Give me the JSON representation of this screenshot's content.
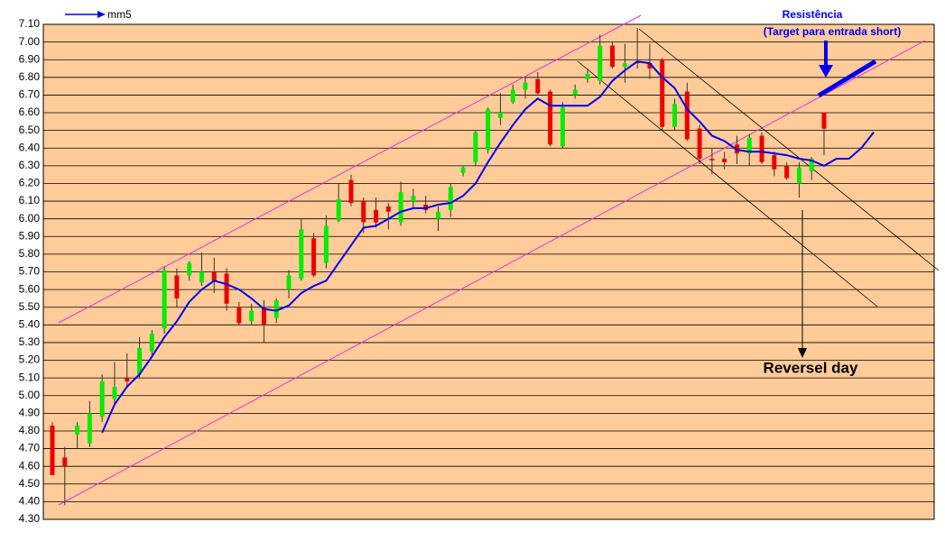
{
  "chart_data": {
    "type": "candlestick",
    "ylim": [
      4.3,
      7.1
    ],
    "yticks": [
      {
        "value": 4.3,
        "label": "4.30"
      },
      {
        "value": 4.4,
        "label": "4.40"
      },
      {
        "value": 4.5,
        "label": "4.50"
      },
      {
        "value": 4.6,
        "label": "4.60"
      },
      {
        "value": 4.7,
        "label": "4.70"
      },
      {
        "value": 4.8,
        "label": "4.80"
      },
      {
        "value": 4.9,
        "label": "4.90"
      },
      {
        "value": 5.0,
        "label": "5.00"
      },
      {
        "value": 5.1,
        "label": "5.10"
      },
      {
        "value": 5.2,
        "label": "5.20"
      },
      {
        "value": 5.3,
        "label": "5.30"
      },
      {
        "value": 5.4,
        "label": "5.40"
      },
      {
        "value": 5.5,
        "label": "5.50"
      },
      {
        "value": 5.6,
        "label": "5.60"
      },
      {
        "value": 5.7,
        "label": "5.70"
      },
      {
        "value": 5.8,
        "label": "5.80"
      },
      {
        "value": 5.9,
        "label": "5.90"
      },
      {
        "value": 6.0,
        "label": "6.00"
      },
      {
        "value": 6.1,
        "label": "6.10"
      },
      {
        "value": 6.2,
        "label": "6.20"
      },
      {
        "value": 6.3,
        "label": "6.30"
      },
      {
        "value": 6.4,
        "label": "6.40"
      },
      {
        "value": 6.5,
        "label": "6.50"
      },
      {
        "value": 6.6,
        "label": "6.60"
      },
      {
        "value": 6.7,
        "label": "6.70"
      },
      {
        "value": 6.8,
        "label": "6.80"
      },
      {
        "value": 6.9,
        "label": "6.90"
      },
      {
        "value": 7.0,
        "label": "7.00"
      },
      {
        "value": 7.1,
        "label": "7.10"
      }
    ],
    "grid": true,
    "background": "#ffcc99",
    "candles": {
      "up_color": "#00ee00",
      "down_color": "#ee0000",
      "open": [
        4.83,
        4.65,
        4.78,
        4.73,
        4.88,
        4.98,
        5.1,
        5.12,
        5.25,
        5.38,
        5.68,
        5.68,
        5.64,
        5.7,
        5.69,
        5.5,
        5.42,
        5.5,
        5.44,
        5.6,
        5.66,
        5.89,
        5.75,
        5.99,
        6.22,
        6.1,
        6.05,
        6.07,
        5.98,
        6.1,
        6.08,
        6.0,
        6.05,
        6.26,
        6.32,
        6.39,
        6.57,
        6.66,
        6.73,
        6.79,
        6.72,
        6.41,
        6.7,
        6.79,
        6.78,
        6.98,
        6.86,
        6.89,
        6.88,
        6.9,
        6.52,
        6.72,
        6.51,
        6.34,
        6.34,
        6.42,
        6.37,
        6.47,
        6.36,
        6.3,
        6.2,
        6.27,
        6.6,
        null,
        null,
        null,
        null
      ],
      "high": [
        4.85,
        4.71,
        4.85,
        4.97,
        5.12,
        5.19,
        5.24,
        5.33,
        5.37,
        5.73,
        5.72,
        5.76,
        5.81,
        5.78,
        5.72,
        5.53,
        5.52,
        5.54,
        5.55,
        5.71,
        6.0,
        5.92,
        6.02,
        6.2,
        6.25,
        6.12,
        6.12,
        6.09,
        6.21,
        6.17,
        6.13,
        6.07,
        6.2,
        6.3,
        6.5,
        6.63,
        6.71,
        6.76,
        6.8,
        6.83,
        6.73,
        6.66,
        6.76,
        6.85,
        7.04,
        7.0,
        6.99,
        7.08,
        6.99,
        6.91,
        6.68,
        6.77,
        6.53,
        6.4,
        6.38,
        6.47,
        6.48,
        6.49,
        6.38,
        6.32,
        6.32,
        6.35,
        6.6,
        null,
        null,
        null,
        null
      ],
      "low": [
        4.55,
        4.38,
        4.7,
        4.71,
        4.85,
        4.95,
        5.05,
        5.1,
        5.22,
        5.35,
        5.5,
        5.65,
        5.62,
        5.58,
        5.48,
        5.4,
        5.4,
        5.3,
        5.41,
        5.55,
        5.65,
        5.67,
        5.72,
        5.98,
        6.07,
        5.92,
        5.95,
        5.94,
        5.96,
        6.06,
        6.03,
        5.93,
        6.01,
        6.24,
        6.3,
        6.37,
        6.53,
        6.65,
        6.68,
        6.7,
        6.41,
        6.4,
        6.68,
        6.77,
        6.76,
        6.85,
        6.77,
        6.85,
        6.79,
        6.5,
        6.5,
        6.44,
        6.31,
        6.25,
        6.28,
        6.31,
        6.3,
        6.31,
        6.24,
        6.22,
        6.12,
        6.22,
        6.36,
        null,
        null,
        null,
        null
      ],
      "close": [
        4.55,
        4.6,
        4.83,
        4.9,
        5.08,
        5.05,
        5.08,
        5.27,
        5.35,
        5.71,
        5.55,
        5.75,
        5.7,
        5.65,
        5.52,
        5.41,
        5.48,
        5.4,
        5.54,
        5.68,
        5.94,
        5.68,
        5.96,
        6.11,
        6.09,
        5.98,
        5.98,
        6.04,
        6.15,
        6.13,
        6.05,
        6.04,
        6.18,
        6.29,
        6.49,
        6.62,
        6.6,
        6.73,
        6.77,
        6.71,
        6.42,
        6.63,
        6.73,
        6.82,
        6.98,
        6.86,
        6.88,
        6.88,
        6.85,
        6.52,
        6.65,
        6.45,
        6.34,
        6.33,
        6.32,
        6.37,
        6.46,
        6.32,
        6.28,
        6.23,
        6.29,
        6.34,
        6.51,
        null,
        null,
        null,
        null
      ]
    },
    "series": [
      {
        "name": "mm5",
        "color": "#0000ee",
        "values": [
          null,
          null,
          null,
          null,
          4.79,
          4.95,
          5.05,
          5.12,
          5.22,
          5.33,
          5.42,
          5.53,
          5.6,
          5.65,
          5.63,
          5.6,
          5.55,
          5.49,
          5.48,
          5.51,
          5.58,
          5.62,
          5.65,
          5.75,
          5.85,
          5.95,
          5.96,
          6.0,
          6.04,
          6.06,
          6.06,
          6.08,
          6.09,
          6.13,
          6.2,
          6.32,
          6.43,
          6.53,
          6.62,
          6.68,
          6.64,
          6.64,
          6.64,
          6.64,
          6.69,
          6.78,
          6.84,
          6.89,
          6.88,
          6.8,
          6.74,
          6.62,
          6.55,
          6.47,
          6.44,
          6.39,
          6.38,
          6.38,
          6.37,
          6.36,
          6.34,
          6.33,
          6.3,
          6.34,
          6.34,
          6.4,
          6.49
        ]
      }
    ],
    "annotations": {
      "resistance": "Resistência",
      "target": "(Target para entrada short)",
      "reversal": "Reversel day"
    }
  }
}
